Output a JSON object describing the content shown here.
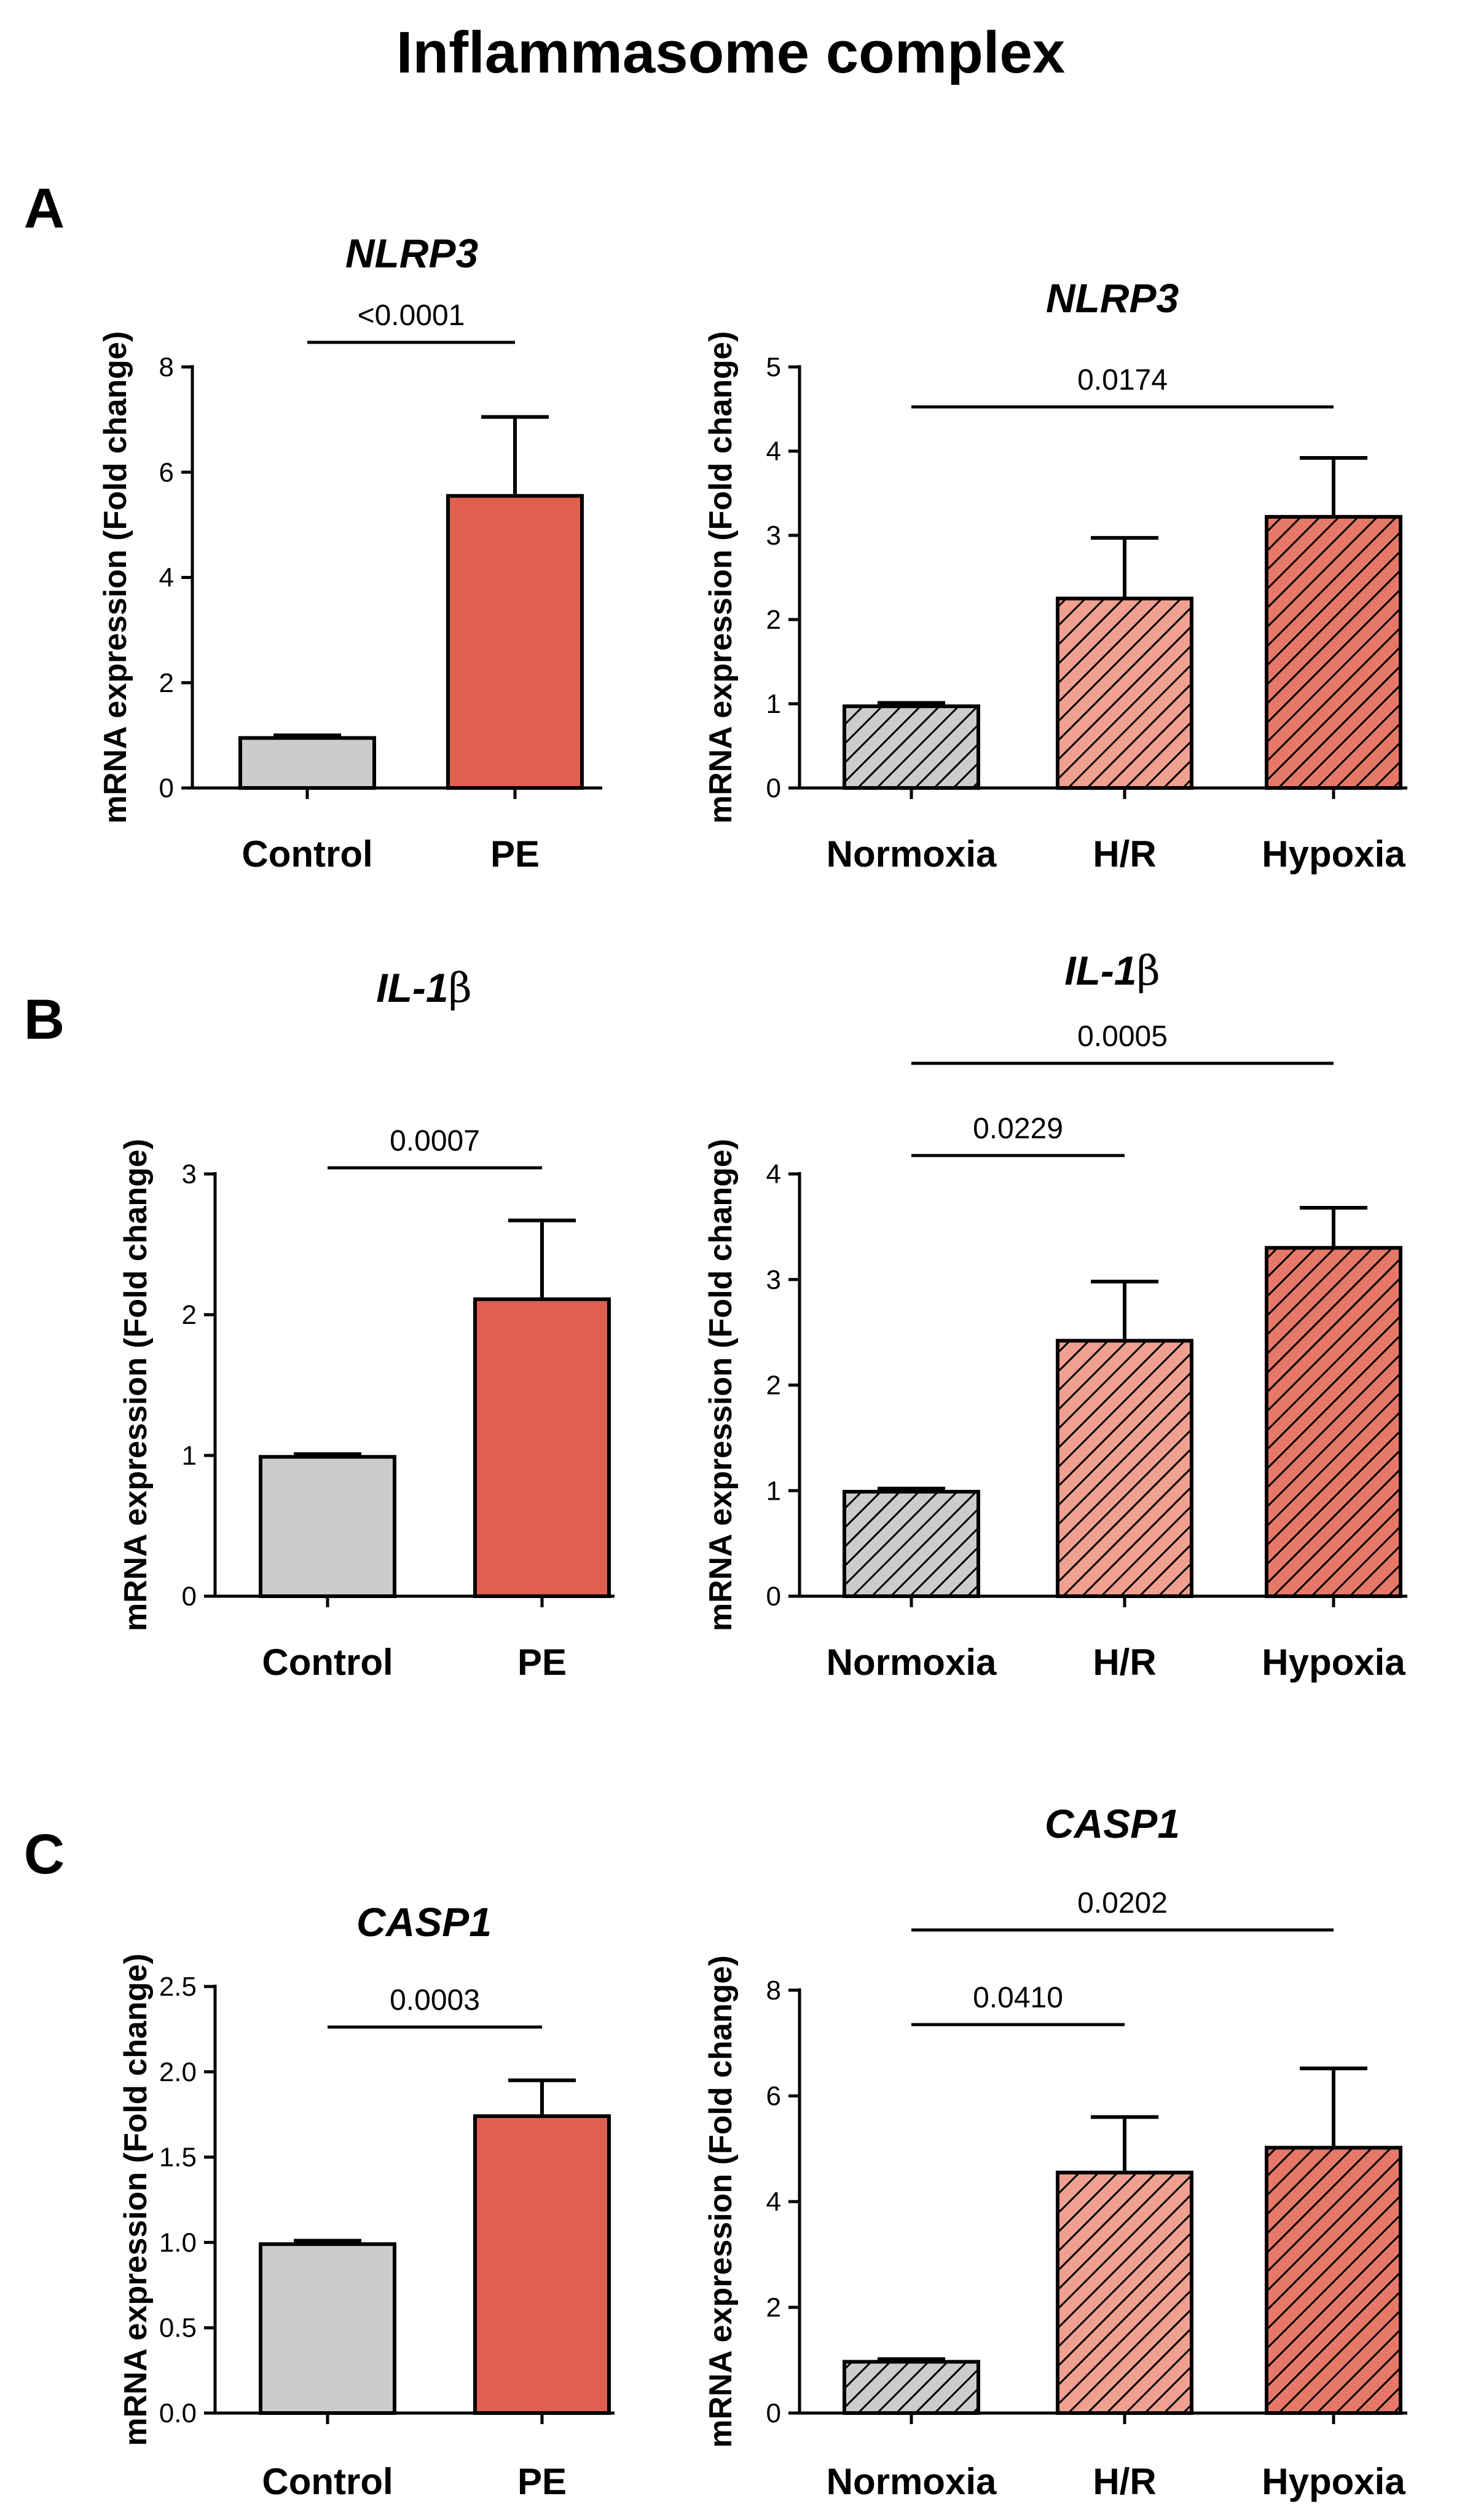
{
  "title": "Inflammasome complex",
  "colors": {
    "control": "#cccccc",
    "pe": "#e06050",
    "normoxia": "#cccccc",
    "hr": "#f0a090",
    "hypoxia": "#e67868",
    "stroke": "#000000"
  },
  "panels": [
    {
      "letter": "A"
    },
    {
      "letter": "B"
    },
    {
      "letter": "C"
    }
  ],
  "chart_data": [
    {
      "id": "A-left",
      "type": "bar",
      "title": "NLRP3",
      "ylabel": "mRNA expression (Fold change)",
      "categories": [
        "Control",
        "PE"
      ],
      "values": [
        0.95,
        5.55
      ],
      "errors": [
        0.05,
        1.5
      ],
      "ylim": [
        0,
        8
      ],
      "yticks": [
        "0",
        "2",
        "4",
        "6",
        "8"
      ],
      "ytick_values": [
        0,
        2,
        4,
        6,
        8
      ],
      "fills": [
        "control",
        "pe"
      ],
      "hatched": false,
      "significance": [
        {
          "from": 0,
          "to": 1,
          "label": "<0.0001"
        }
      ]
    },
    {
      "id": "A-right",
      "type": "bar",
      "title": "NLRP3",
      "ylabel": "mRNA expression (Fold change)",
      "categories": [
        "Normoxia",
        "H/R",
        "Hypoxia"
      ],
      "values": [
        0.97,
        2.25,
        3.22
      ],
      "errors": [
        0.04,
        0.72,
        0.7
      ],
      "ylim": [
        0,
        5
      ],
      "yticks": [
        "0",
        "1",
        "2",
        "3",
        "4",
        "5"
      ],
      "ytick_values": [
        0,
        1,
        2,
        3,
        4,
        5
      ],
      "fills": [
        "normoxia",
        "hr",
        "hypoxia"
      ],
      "hatched": true,
      "significance": [
        {
          "from": 0,
          "to": 2,
          "label": "0.0174"
        }
      ]
    },
    {
      "id": "B-left",
      "type": "bar",
      "title": "IL-1",
      "title_suffix": "β",
      "ylabel": "mRNA expression (Fold change)",
      "categories": [
        "Control",
        "PE"
      ],
      "values": [
        0.99,
        2.11
      ],
      "errors": [
        0.02,
        0.56
      ],
      "ylim": [
        0,
        3
      ],
      "yticks": [
        "0",
        "1",
        "2",
        "3"
      ],
      "ytick_values": [
        0,
        1,
        2,
        3
      ],
      "fills": [
        "control",
        "pe"
      ],
      "hatched": false,
      "significance": [
        {
          "from": 0,
          "to": 1,
          "label": "0.0007"
        }
      ]
    },
    {
      "id": "B-right",
      "type": "bar",
      "title": "IL-1",
      "title_suffix": "β",
      "ylabel": "mRNA expression (Fold change)",
      "categories": [
        "Normoxia",
        "H/R",
        "Hypoxia"
      ],
      "values": [
        0.99,
        2.42,
        3.3
      ],
      "errors": [
        0.03,
        0.56,
        0.38
      ],
      "ylim": [
        0,
        4
      ],
      "yticks": [
        "0",
        "1",
        "2",
        "3",
        "4"
      ],
      "ytick_values": [
        0,
        1,
        2,
        3,
        4
      ],
      "fills": [
        "normoxia",
        "hr",
        "hypoxia"
      ],
      "hatched": true,
      "significance": [
        {
          "from": 0,
          "to": 1,
          "label": "0.0229"
        },
        {
          "from": 0,
          "to": 2,
          "label": "0.0005"
        }
      ]
    },
    {
      "id": "C-left",
      "type": "bar",
      "title": "CASP1",
      "ylabel": "mRNA expression (Fold change)",
      "categories": [
        "Control",
        "PE"
      ],
      "values": [
        0.99,
        1.74
      ],
      "errors": [
        0.02,
        0.21
      ],
      "ylim": [
        0,
        2.5
      ],
      "yticks": [
        "0.0",
        "0.5",
        "1.0",
        "1.5",
        "2.0",
        "2.5"
      ],
      "ytick_values": [
        0,
        0.5,
        1,
        1.5,
        2,
        2.5
      ],
      "fills": [
        "control",
        "pe"
      ],
      "hatched": false,
      "significance": [
        {
          "from": 0,
          "to": 1,
          "label": "0.0003"
        }
      ]
    },
    {
      "id": "C-right",
      "type": "bar",
      "title": "CASP1",
      "ylabel": "mRNA expression (Fold change)",
      "categories": [
        "Normoxia",
        "H/R",
        "Hypoxia"
      ],
      "values": [
        0.97,
        4.55,
        5.02
      ],
      "errors": [
        0.05,
        1.05,
        1.5
      ],
      "ylim": [
        0,
        8
      ],
      "yticks": [
        "0",
        "2",
        "4",
        "6",
        "8"
      ],
      "ytick_values": [
        0,
        2,
        4,
        6,
        8
      ],
      "fills": [
        "normoxia",
        "hr",
        "hypoxia"
      ],
      "hatched": true,
      "significance": [
        {
          "from": 0,
          "to": 1,
          "label": "0.0410"
        },
        {
          "from": 0,
          "to": 2,
          "label": "0.0202"
        }
      ]
    }
  ]
}
